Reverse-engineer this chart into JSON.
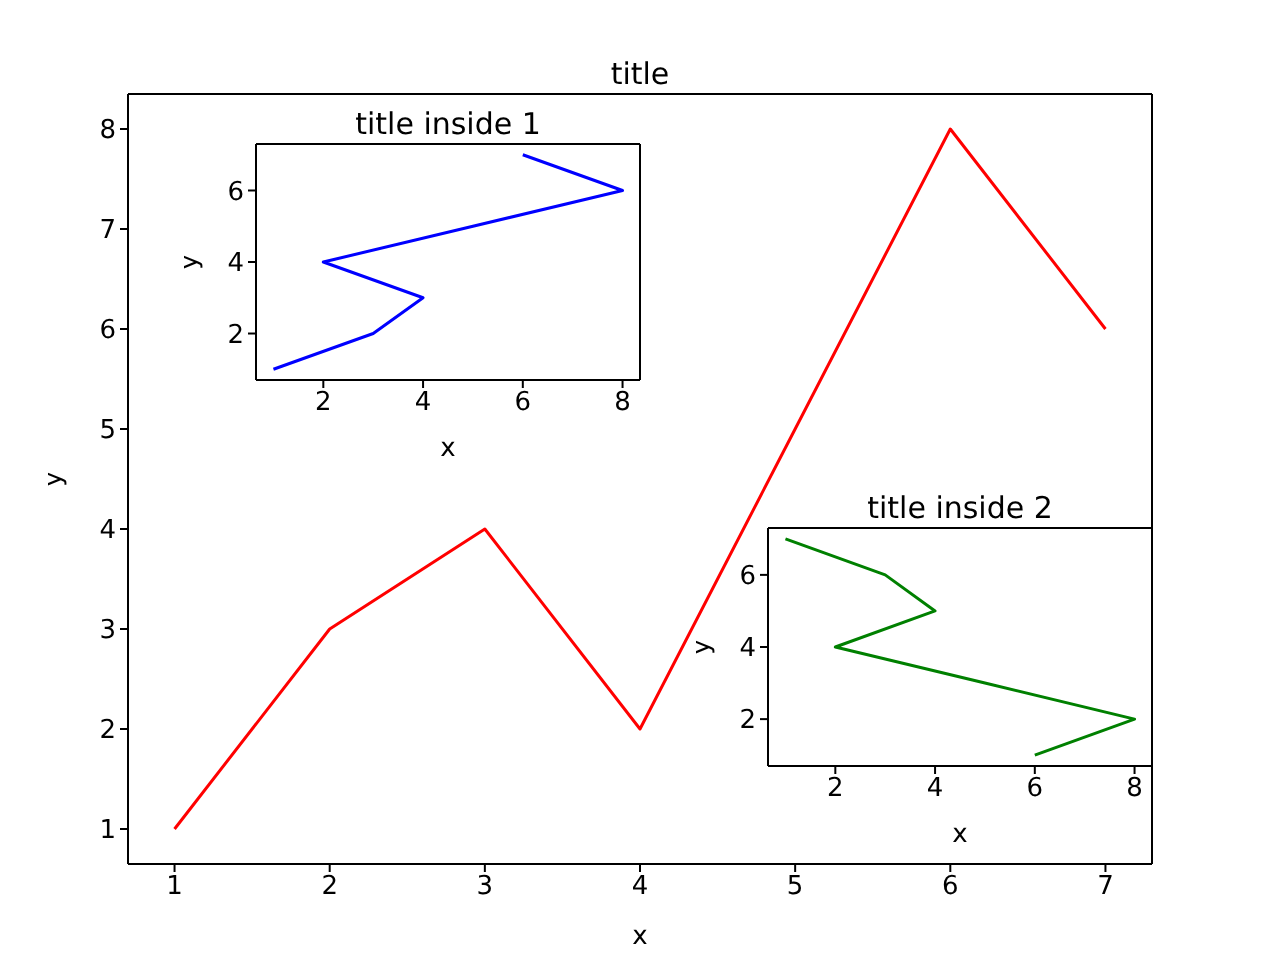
{
  "chart_data": [
    {
      "type": "line",
      "title": "title",
      "xlabel": "x",
      "ylabel": "y",
      "x": [
        1,
        2,
        3,
        4,
        5,
        6,
        7
      ],
      "values": [
        1,
        3,
        4,
        2,
        5,
        8,
        6
      ],
      "color": "#ff0000",
      "xlim": [
        0.7,
        7.3
      ],
      "ylim": [
        0.65,
        8.35
      ],
      "xticks": [
        1,
        2,
        3,
        4,
        5,
        6,
        7
      ],
      "yticks": [
        1,
        2,
        3,
        4,
        5,
        6,
        7,
        8
      ],
      "marker": "none"
    },
    {
      "type": "line",
      "title": "title inside 1",
      "xlabel": "x",
      "ylabel": "y",
      "x": [
        1,
        3,
        4,
        2,
        5,
        8,
        6
      ],
      "values": [
        1,
        2,
        3,
        4,
        5,
        6,
        7
      ],
      "color": "#0000ff",
      "xlim": [
        0.65,
        8.35
      ],
      "ylim": [
        0.7,
        7.3
      ],
      "xticks": [
        2,
        4,
        6,
        8
      ],
      "yticks": [
        2,
        4,
        6
      ],
      "marker": "none"
    },
    {
      "type": "line",
      "title": "title inside 2",
      "xlabel": "x",
      "ylabel": "y",
      "x": [
        6,
        8,
        5,
        2,
        4,
        3,
        1
      ],
      "values": [
        1,
        2,
        3,
        4,
        5,
        6,
        7
      ],
      "color": "#008000",
      "xlim": [
        0.65,
        8.35
      ],
      "ylim": [
        0.7,
        7.3
      ],
      "xticks": [
        2,
        4,
        6,
        8
      ],
      "yticks": [
        2,
        4,
        6
      ],
      "marker": "none"
    }
  ]
}
